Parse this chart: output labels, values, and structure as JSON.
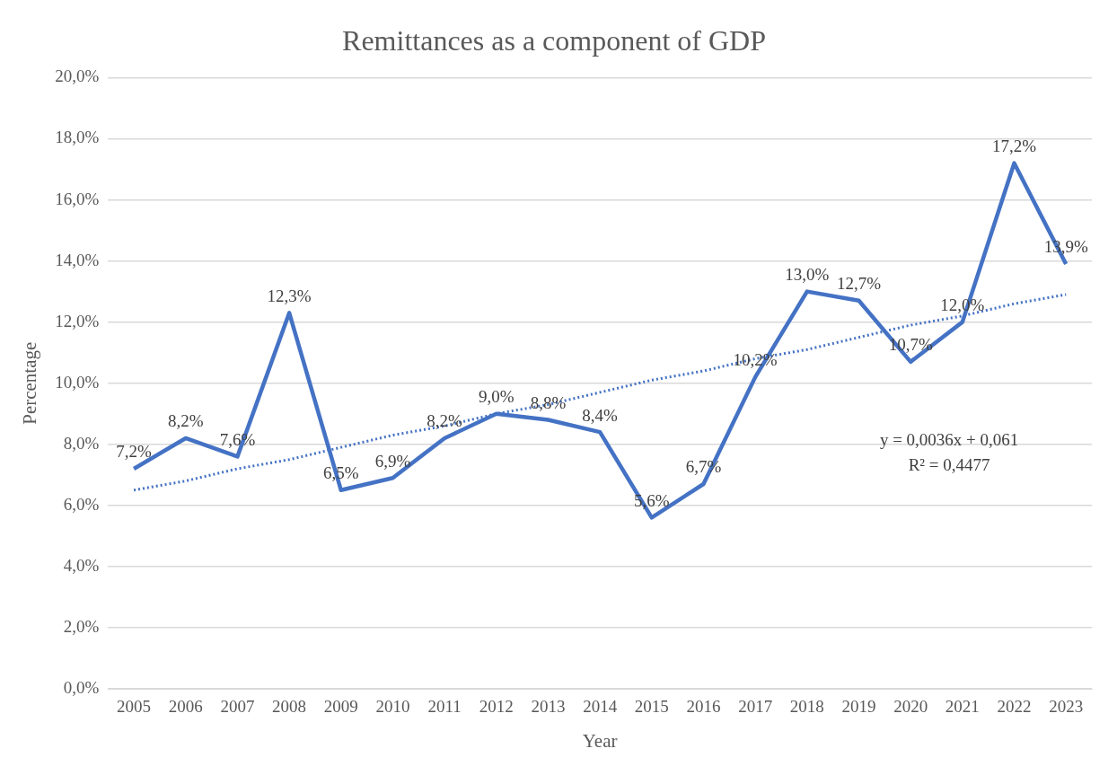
{
  "chart_data": {
    "type": "line",
    "title": "Remittances as a component of GDP",
    "xlabel": "Year",
    "ylabel": "Percentage",
    "categories": [
      "2005",
      "2006",
      "2007",
      "2008",
      "2009",
      "2010",
      "2011",
      "2012",
      "2013",
      "2014",
      "2015",
      "2016",
      "2017",
      "2018",
      "2019",
      "2020",
      "2021",
      "2022",
      "2023"
    ],
    "series": [
      {
        "color": "#4472c4",
        "values": [
          7.2,
          8.2,
          7.6,
          12.3,
          6.5,
          6.9,
          8.2,
          9.0,
          8.8,
          8.4,
          5.6,
          6.7,
          10.2,
          13.0,
          12.7,
          10.7,
          12.0,
          17.2,
          13.9
        ],
        "value_labels": [
          "7,2%",
          "8,2%",
          "7,6%",
          "12,3%",
          "6,5%",
          "6,9%",
          "8,2%",
          "9,0%",
          "8,8%",
          "8,4%",
          "5,6%",
          "6,7%",
          "10,2%",
          "13,0%",
          "12,7%",
          "10,7%",
          "12,0%",
          "17,2%",
          "13,9%"
        ]
      },
      {
        "color": "#4472c4",
        "line_style": "dotted",
        "values": [
          6.5,
          6.8,
          7.2,
          7.5,
          7.9,
          8.3,
          8.6,
          9.0,
          9.3,
          9.7,
          10.1,
          10.4,
          10.8,
          11.1,
          11.5,
          11.9,
          12.2,
          12.6,
          12.9
        ]
      }
    ],
    "ylim": [
      0,
      20
    ],
    "yticks": [
      {
        "value": 0,
        "label": "0,0%"
      },
      {
        "value": 2,
        "label": "2,0%"
      },
      {
        "value": 4,
        "label": "4,0%"
      },
      {
        "value": 6,
        "label": "6,0%"
      },
      {
        "value": 8,
        "label": "8,0%"
      },
      {
        "value": 10,
        "label": "10,0%"
      },
      {
        "value": 12,
        "label": "12,0%"
      },
      {
        "value": 14,
        "label": "14,0%"
      },
      {
        "value": 16,
        "label": "16,0%"
      },
      {
        "value": 18,
        "label": "18,0%"
      },
      {
        "value": 20,
        "label": "20,0%"
      }
    ],
    "grid": "y",
    "legend": false,
    "marker": "none",
    "annotations": [
      "y = 0,0036x + 0,061",
      "R² = 0,4477"
    ]
  }
}
